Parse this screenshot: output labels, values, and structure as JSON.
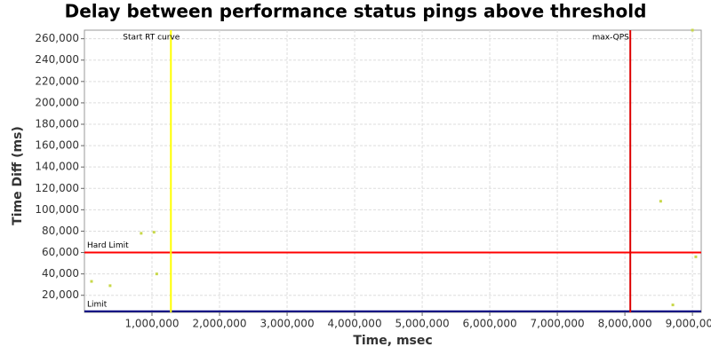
{
  "chart_data": {
    "type": "scatter",
    "title": "Delay between performance status pings above threshold",
    "x_label": "Time, msec",
    "y_label": "Time Diff (ms)",
    "x": [
      105000,
      380000,
      840000,
      1030000,
      1070000,
      8530000,
      8710000,
      9000000,
      9050000
    ],
    "values": [
      33000,
      29000,
      78000,
      79000,
      40000,
      108000,
      11000,
      268000,
      56000
    ],
    "color": "#c8d84a",
    "xlim": [
      0,
      9130000
    ],
    "ylim": [
      4000,
      268000
    ],
    "xticks": [
      {
        "value": 1000000,
        "label": "1,000,000"
      },
      {
        "value": 2000000,
        "label": "2,000,000"
      },
      {
        "value": 3000000,
        "label": "3,000,000"
      },
      {
        "value": 4000000,
        "label": "4,000,000"
      },
      {
        "value": 5000000,
        "label": "5,000,000"
      },
      {
        "value": 6000000,
        "label": "6,000,000"
      },
      {
        "value": 7000000,
        "label": "7,000,000"
      },
      {
        "value": 8000000,
        "label": "8,000,000"
      },
      {
        "value": 9000000,
        "label": "9,000,000"
      }
    ],
    "yticks": [
      {
        "value": 20000,
        "label": "20,000"
      },
      {
        "value": 40000,
        "label": "40,000"
      },
      {
        "value": 60000,
        "label": "60,000"
      },
      {
        "value": 80000,
        "label": "80,000"
      },
      {
        "value": 100000,
        "label": "100,000"
      },
      {
        "value": 120000,
        "label": "120,000"
      },
      {
        "value": 140000,
        "label": "140,000"
      },
      {
        "value": 160000,
        "label": "160,000"
      },
      {
        "value": 180000,
        "label": "180,000"
      },
      {
        "value": 200000,
        "label": "200,000"
      },
      {
        "value": 220000,
        "label": "220,000"
      },
      {
        "value": 240000,
        "label": "240,000"
      },
      {
        "value": 260000,
        "label": "260,000"
      }
    ],
    "grid": true,
    "vlines": [
      {
        "label": "Start RT curve",
        "x": 1280000,
        "color": "#ffff00"
      },
      {
        "label": "max-QPS",
        "x": 8080000,
        "color": "#dd0000"
      }
    ],
    "hlines": [
      {
        "label": "Hard Limit",
        "y": 60000,
        "color": "#ff0000"
      },
      {
        "label": "Limit",
        "y": 5000,
        "color": "#000080"
      }
    ]
  }
}
